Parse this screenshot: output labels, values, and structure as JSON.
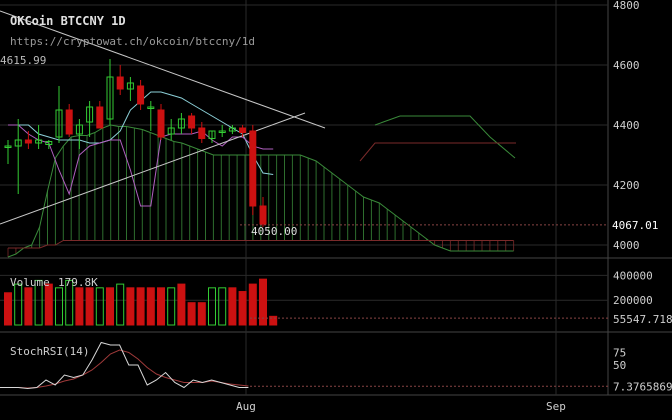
{
  "header": {
    "title": "OKCoin BTCCNY 1D",
    "url": "https://cryptowat.ch/okcoin/btccny/1d",
    "prev_high": "4615.99"
  },
  "colors": {
    "background": "#000000",
    "up": "#33cc33",
    "down": "#cc1111",
    "kijun": "#8cd0d8",
    "tenkan": "#b060c0",
    "cloud_up": "#3a8a3a",
    "cloud_down": "#7a2a2a",
    "trendline": "#c8c8c8",
    "grid": "#2a2a2a",
    "text": "#cfcfcf"
  },
  "chart_data": [
    {
      "type": "candlestick",
      "title": "OKCoin BTCCNY 1D",
      "y_ticks": [
        "4800",
        "4600",
        "4400",
        "4200",
        "4000"
      ],
      "ylim": [
        3960,
        4800
      ],
      "last_price_label": "4067.01",
      "low_label": "4050.00",
      "x_ticks": [
        "Aug",
        "Sep"
      ],
      "candles": [
        {
          "o": 4330,
          "h": 4350,
          "l": 4270,
          "c": 4330
        },
        {
          "o": 4330,
          "h": 4420,
          "l": 4170,
          "c": 4350
        },
        {
          "o": 4350,
          "h": 4380,
          "l": 4320,
          "c": 4340
        },
        {
          "o": 4340,
          "h": 4400,
          "l": 4320,
          "c": 4350
        },
        {
          "o": 4335,
          "h": 4350,
          "l": 4320,
          "c": 4345
        },
        {
          "o": 4360,
          "h": 4530,
          "l": 4340,
          "c": 4450
        },
        {
          "o": 4450,
          "h": 4470,
          "l": 4360,
          "c": 4370
        },
        {
          "o": 4370,
          "h": 4420,
          "l": 4320,
          "c": 4400
        },
        {
          "o": 4410,
          "h": 4480,
          "l": 4360,
          "c": 4460
        },
        {
          "o": 4460,
          "h": 4480,
          "l": 4390,
          "c": 4390
        },
        {
          "o": 4420,
          "h": 4620,
          "l": 4400,
          "c": 4560
        },
        {
          "o": 4560,
          "h": 4600,
          "l": 4500,
          "c": 4520
        },
        {
          "o": 4520,
          "h": 4560,
          "l": 4480,
          "c": 4540
        },
        {
          "o": 4530,
          "h": 4550,
          "l": 4450,
          "c": 4470
        },
        {
          "o": 4460,
          "h": 4480,
          "l": 4380,
          "c": 4460
        },
        {
          "o": 4450,
          "h": 4470,
          "l": 4350,
          "c": 4360
        },
        {
          "o": 4370,
          "h": 4420,
          "l": 4350,
          "c": 4390
        },
        {
          "o": 4390,
          "h": 4440,
          "l": 4370,
          "c": 4420
        },
        {
          "o": 4430,
          "h": 4440,
          "l": 4370,
          "c": 4390
        },
        {
          "o": 4390,
          "h": 4410,
          "l": 4340,
          "c": 4355
        },
        {
          "o": 4355,
          "h": 4380,
          "l": 4340,
          "c": 4380
        },
        {
          "o": 4380,
          "h": 4400,
          "l": 4360,
          "c": 4380
        },
        {
          "o": 4380,
          "h": 4400,
          "l": 4370,
          "c": 4390
        },
        {
          "o": 4390,
          "h": 4400,
          "l": 4360,
          "c": 4375
        },
        {
          "o": 4380,
          "h": 4400,
          "l": 4100,
          "c": 4130
        },
        {
          "o": 4130,
          "h": 4160,
          "l": 4060,
          "c": 4070
        }
      ],
      "kijun": [
        4400,
        4400,
        4400,
        4370,
        4360,
        4350,
        4350,
        4350,
        4340,
        4340,
        4350,
        4380,
        4450,
        4480,
        4510,
        4510,
        4500,
        4490,
        4470,
        4450,
        4430,
        4410,
        4390,
        4370,
        4300,
        4240,
        4235
      ],
      "tenkan": [
        4400,
        4400,
        4370,
        4350,
        4340,
        4250,
        4170,
        4300,
        4330,
        4340,
        4350,
        4350,
        4250,
        4130,
        4130,
        4360,
        4370,
        4370,
        4370,
        4380,
        4350,
        4330,
        4360,
        4360,
        4330,
        4320,
        4320
      ],
      "cloud_a": [
        3960,
        3970,
        3990,
        4000,
        4060,
        4180,
        4290,
        4330,
        4360,
        4365,
        4365,
        4375,
        4390,
        4400,
        4395,
        4395,
        4390,
        4385,
        4375,
        4365,
        4355,
        4345,
        4340,
        4330,
        4320,
        4310,
        4300,
        4300,
        4300,
        4300,
        4300,
        4300,
        4300,
        4300,
        4300,
        4300,
        4300,
        4300,
        4290,
        4280,
        4260,
        4240,
        4220,
        4200,
        4180,
        4160,
        4150,
        4140,
        4120,
        4100,
        4080,
        4060,
        4040,
        4020,
        4000,
        3990,
        3980,
        3980,
        3980,
        3980,
        3980,
        3980,
        3980,
        3980,
        3980
      ],
      "cloud_b": [
        3990,
        3990,
        3990,
        3990,
        3990,
        4000,
        4000,
        4015,
        4015,
        4015,
        4015,
        4015,
        4015,
        4015,
        4015,
        4015,
        4015,
        4015,
        4015,
        4015,
        4015,
        4015,
        4015,
        4015,
        4015,
        4015,
        4015,
        4015,
        4015,
        4015,
        4015,
        4015,
        4015,
        4015,
        4015,
        4015,
        4015,
        4015,
        4015,
        4015,
        4015,
        4015,
        4015,
        4015,
        4015,
        4015,
        4015,
        4015,
        4015,
        4015,
        4015,
        4015,
        4015,
        4015,
        4015,
        4015,
        4015,
        4015,
        4015,
        4015,
        4015,
        4015,
        4015,
        4015,
        4015
      ]
    },
    {
      "type": "bar",
      "title": "Volume",
      "current_label": "179.8K",
      "y_ticks": [
        "400000",
        "200000"
      ],
      "last_label": "55547.718",
      "ylim": [
        0,
        460000
      ],
      "values": [
        260000,
        330000,
        300000,
        360000,
        330000,
        300000,
        360000,
        300000,
        300000,
        300000,
        300000,
        330000,
        300000,
        300000,
        300000,
        300000,
        300000,
        330000,
        180000,
        180000,
        300000,
        300000,
        300000,
        270000,
        330000,
        370000,
        70000
      ],
      "up": [
        false,
        true,
        false,
        true,
        false,
        true,
        true,
        false,
        false,
        true,
        false,
        true,
        false,
        false,
        false,
        false,
        true,
        false,
        false,
        false,
        true,
        true,
        false,
        false,
        false,
        false,
        false
      ]
    },
    {
      "type": "line",
      "title": "StochRSI(14)",
      "y_ticks": [
        "75",
        "50"
      ],
      "last_label": "7.3765869",
      "ylim": [
        0,
        100
      ],
      "k": [
        5,
        5,
        5,
        3,
        5,
        20,
        10,
        30,
        25,
        30,
        60,
        95,
        90,
        90,
        50,
        50,
        10,
        20,
        35,
        15,
        5,
        20,
        15,
        20,
        15,
        10,
        5,
        5
      ],
      "d": [
        5,
        5,
        5,
        4,
        5,
        8,
        12,
        18,
        22,
        30,
        40,
        55,
        72,
        80,
        75,
        62,
        45,
        32,
        25,
        20,
        15,
        15,
        15,
        18,
        15,
        12,
        10,
        8
      ]
    }
  ]
}
